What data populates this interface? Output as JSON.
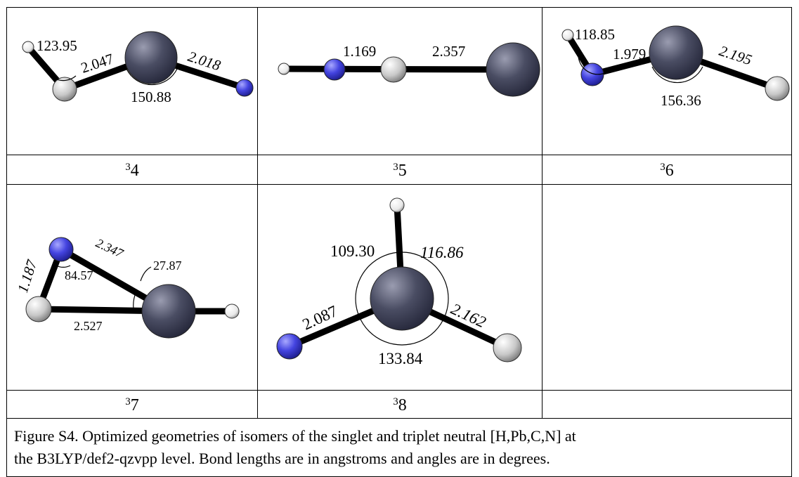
{
  "cells": [
    {
      "label": {
        "sup": "3",
        "num": "4"
      },
      "annotations": [
        "123.95",
        "2.047",
        "2.018",
        "150.88"
      ]
    },
    {
      "label": {
        "sup": "3",
        "num": "5"
      },
      "annotations": [
        "1.169",
        "2.357"
      ]
    },
    {
      "label": {
        "sup": "3",
        "num": "6"
      },
      "annotations": [
        "118.85",
        "1.979",
        "2.195",
        "156.36"
      ]
    },
    {
      "label": {
        "sup": "3",
        "num": "7"
      },
      "annotations": [
        "1.187",
        "84.57",
        "2.347",
        "27.87",
        "2.527"
      ]
    },
    {
      "label": {
        "sup": "3",
        "num": "8"
      },
      "annotations": [
        "109.30",
        "116.86",
        "2.087",
        "2.162",
        "133.84"
      ]
    }
  ],
  "caption": [
    "Figure S4. Optimized geometries of isomers of the singlet and triplet neutral [H,Pb,C,N] at",
    "the B3LYP/def2-qzvpp level. Bond lengths are in angstroms and angles are in degrees."
  ]
}
